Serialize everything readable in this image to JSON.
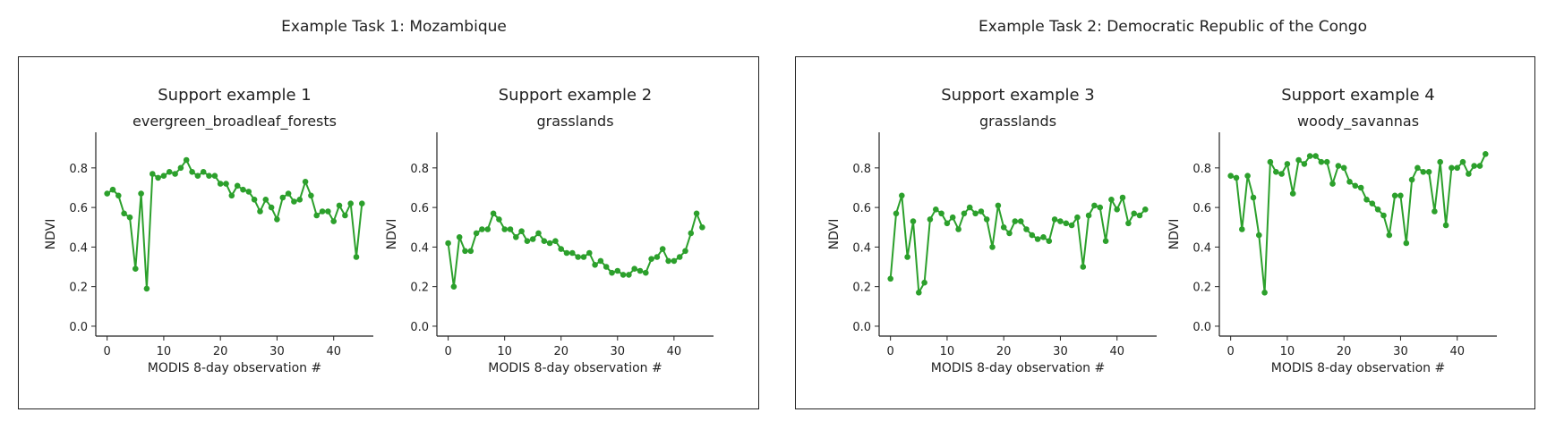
{
  "tasks": [
    {
      "title": "Example Task 1: Mozambique"
    },
    {
      "title": "Example Task 2: Democratic Republic of the Congo"
    }
  ],
  "line_color": "#2ca02c",
  "chart_data": [
    {
      "type": "line",
      "title": "Support example 1",
      "subtitle": "evergreen_broadleaf_forests",
      "xlabel": "MODIS 8-day observation #",
      "ylabel": "NDVI",
      "xlim": [
        -2,
        47
      ],
      "ylim": [
        -0.05,
        0.98
      ],
      "xticks": [
        0,
        10,
        20,
        30,
        40
      ],
      "yticks": [
        0.0,
        0.2,
        0.4,
        0.6,
        0.8
      ],
      "y": [
        0.67,
        0.69,
        0.66,
        0.57,
        0.55,
        0.29,
        0.67,
        0.19,
        0.77,
        0.75,
        0.76,
        0.78,
        0.77,
        0.8,
        0.84,
        0.78,
        0.76,
        0.78,
        0.76,
        0.76,
        0.72,
        0.72,
        0.66,
        0.71,
        0.69,
        0.68,
        0.64,
        0.58,
        0.64,
        0.6,
        0.54,
        0.65,
        0.67,
        0.63,
        0.64,
        0.73,
        0.66,
        0.56,
        0.58,
        0.58,
        0.53,
        0.61,
        0.56,
        0.62,
        0.35,
        0.62
      ]
    },
    {
      "type": "line",
      "title": "Support example 2",
      "subtitle": "grasslands",
      "xlabel": "MODIS 8-day observation #",
      "ylabel": "NDVI",
      "xlim": [
        -2,
        47
      ],
      "ylim": [
        -0.05,
        0.98
      ],
      "xticks": [
        0,
        10,
        20,
        30,
        40
      ],
      "yticks": [
        0.0,
        0.2,
        0.4,
        0.6,
        0.8
      ],
      "y": [
        0.42,
        0.2,
        0.45,
        0.38,
        0.38,
        0.47,
        0.49,
        0.49,
        0.57,
        0.54,
        0.49,
        0.49,
        0.45,
        0.48,
        0.43,
        0.44,
        0.47,
        0.43,
        0.42,
        0.43,
        0.39,
        0.37,
        0.37,
        0.35,
        0.35,
        0.37,
        0.31,
        0.33,
        0.3,
        0.27,
        0.28,
        0.26,
        0.26,
        0.29,
        0.28,
        0.27,
        0.34,
        0.35,
        0.39,
        0.33,
        0.33,
        0.35,
        0.38,
        0.47,
        0.57,
        0.5
      ]
    },
    {
      "type": "line",
      "title": "Support example 3",
      "subtitle": "grasslands",
      "xlabel": "MODIS 8-day observation #",
      "ylabel": "NDVI",
      "xlim": [
        -2,
        47
      ],
      "ylim": [
        -0.05,
        0.98
      ],
      "xticks": [
        0,
        10,
        20,
        30,
        40
      ],
      "yticks": [
        0.0,
        0.2,
        0.4,
        0.6,
        0.8
      ],
      "y": [
        0.24,
        0.57,
        0.66,
        0.35,
        0.53,
        0.17,
        0.22,
        0.54,
        0.59,
        0.57,
        0.52,
        0.55,
        0.49,
        0.57,
        0.6,
        0.57,
        0.58,
        0.54,
        0.4,
        0.61,
        0.5,
        0.47,
        0.53,
        0.53,
        0.49,
        0.46,
        0.44,
        0.45,
        0.43,
        0.54,
        0.53,
        0.52,
        0.51,
        0.55,
        0.3,
        0.56,
        0.61,
        0.6,
        0.43,
        0.64,
        0.59,
        0.65,
        0.52,
        0.57,
        0.56,
        0.59
      ]
    },
    {
      "type": "line",
      "title": "Support example 4",
      "subtitle": "woody_savannas",
      "xlabel": "MODIS 8-day observation #",
      "ylabel": "NDVI",
      "xlim": [
        -2,
        47
      ],
      "ylim": [
        -0.05,
        0.98
      ],
      "xticks": [
        0,
        10,
        20,
        30,
        40
      ],
      "yticks": [
        0.0,
        0.2,
        0.4,
        0.6,
        0.8
      ],
      "y": [
        0.76,
        0.75,
        0.49,
        0.76,
        0.65,
        0.46,
        0.17,
        0.83,
        0.78,
        0.77,
        0.82,
        0.67,
        0.84,
        0.82,
        0.86,
        0.86,
        0.83,
        0.83,
        0.72,
        0.81,
        0.8,
        0.73,
        0.71,
        0.7,
        0.64,
        0.62,
        0.59,
        0.56,
        0.46,
        0.66,
        0.66,
        0.42,
        0.74,
        0.8,
        0.78,
        0.78,
        0.58,
        0.83,
        0.51,
        0.8,
        0.8,
        0.83,
        0.77,
        0.81,
        0.81,
        0.87
      ]
    }
  ]
}
